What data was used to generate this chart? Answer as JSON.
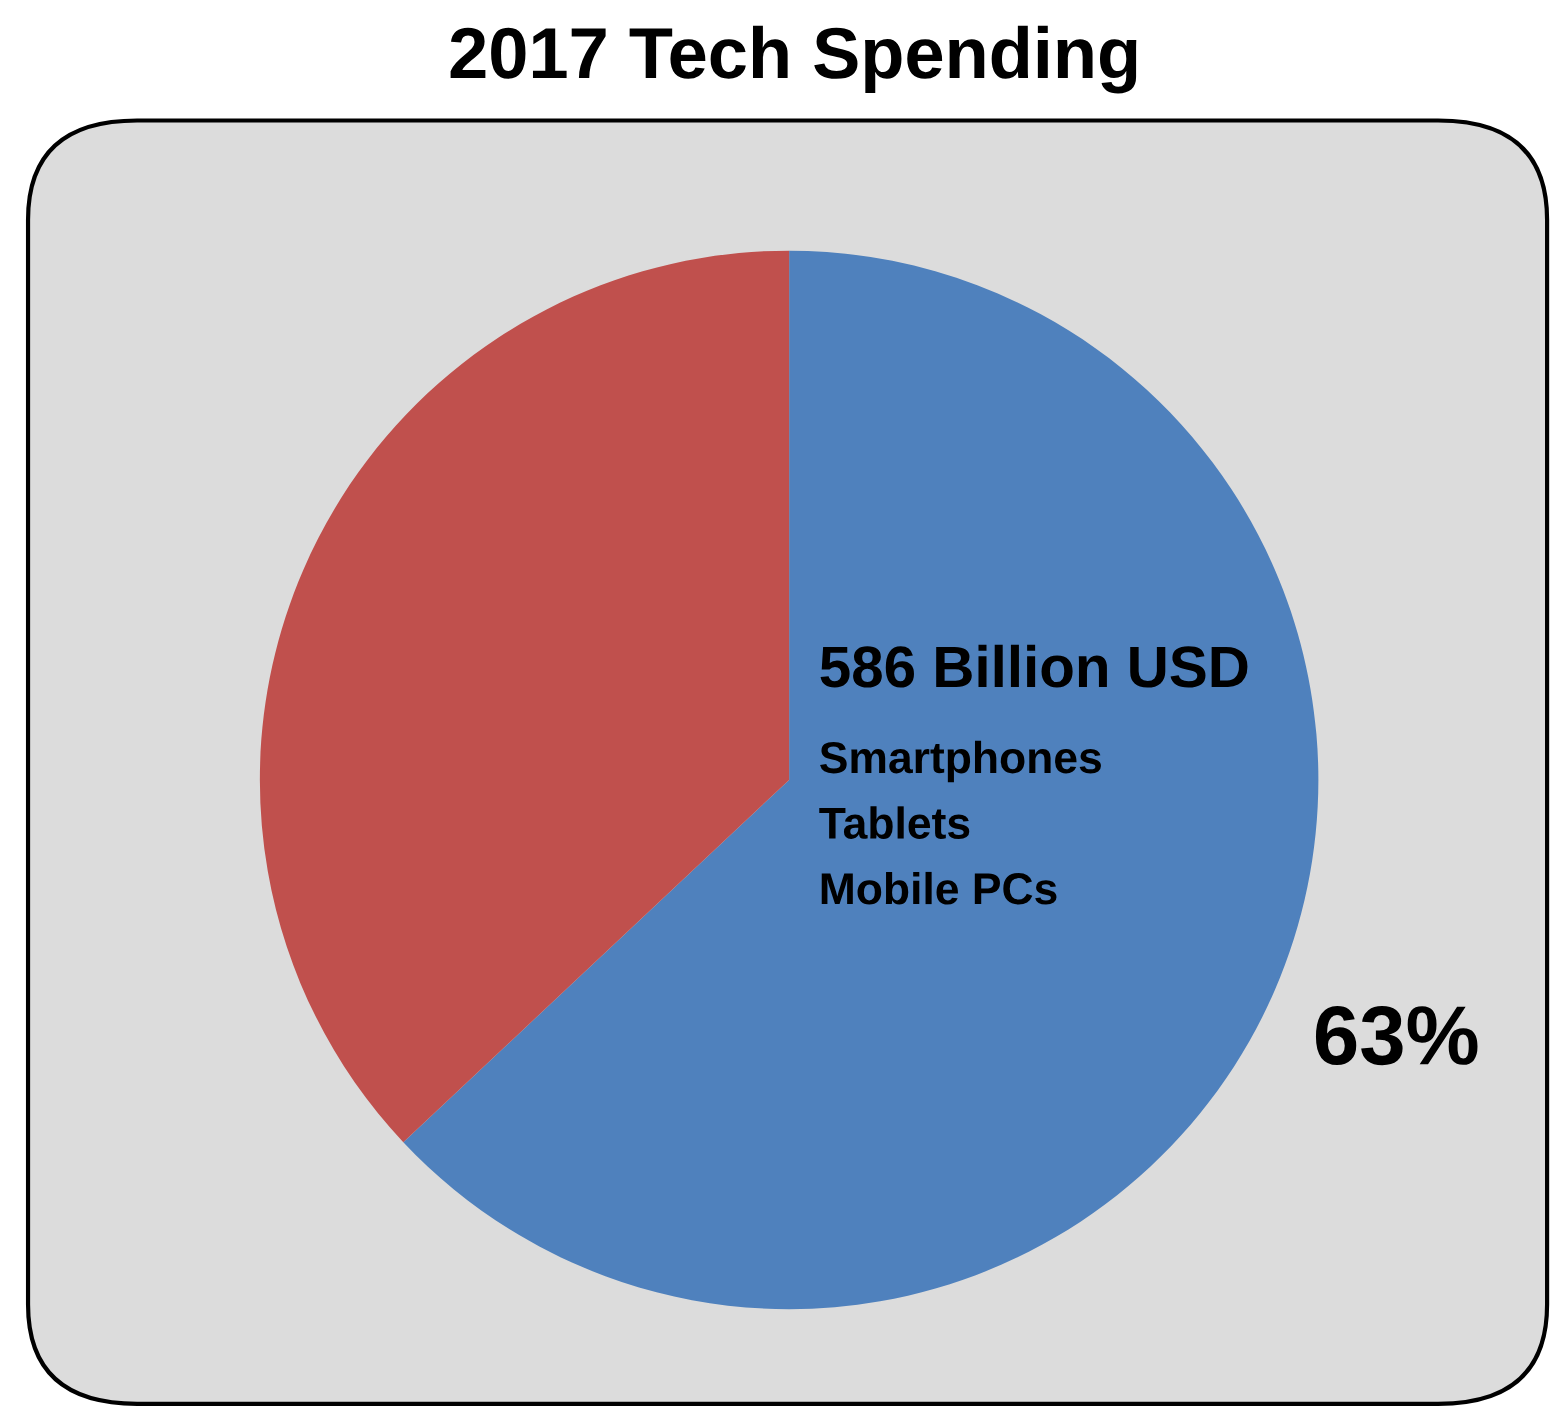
{
  "chart_data": {
    "type": "pie",
    "title": "2017 Tech Spending",
    "categories": [
      "Smartphones\nTablets\nMobile PCs",
      null
    ],
    "values": [
      63,
      37
    ],
    "colors": [
      "#4f81bd",
      "#c0504d"
    ],
    "value_labels": [
      "63%",
      null
    ],
    "annotations": [
      "586 Billion USD"
    ],
    "legend": false
  }
}
